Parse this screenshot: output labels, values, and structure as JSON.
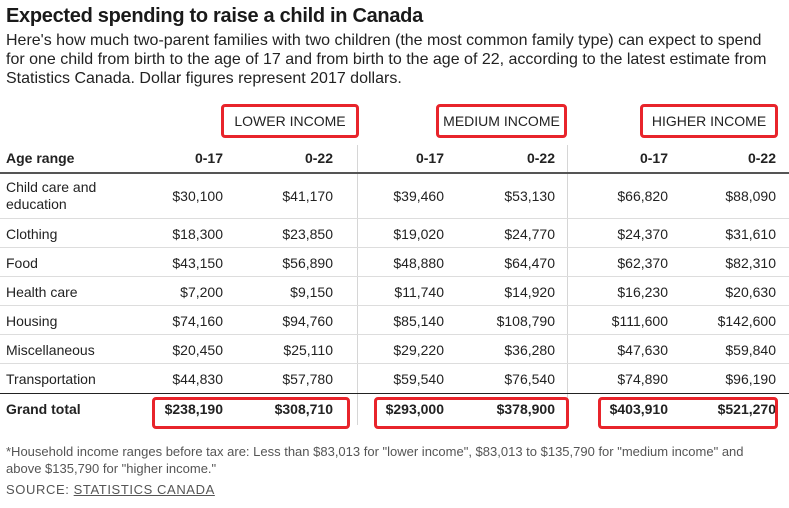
{
  "title": "Expected spending to raise a child in Canada",
  "subtitle": "Here's how much two-parent families with two children (the most common family type) can expect to spend for one child from birth to the age of 17 and from birth to the age of 22, according to the latest estimate from Statistics Canada. Dollar figures represent 2017 dollars.",
  "income_groups": [
    "LOWER INCOME",
    "MEDIUM INCOME",
    "HIGHER INCOME"
  ],
  "table": {
    "columns": [
      "Age range",
      "0-17",
      "0-22",
      "0-17",
      "0-22",
      "0-17",
      "0-22"
    ],
    "rows": [
      {
        "label": "Child care and education",
        "values": [
          "$30,100",
          "$41,170",
          "$39,460",
          "$53,130",
          "$66,820",
          "$88,090"
        ]
      },
      {
        "label": "Clothing",
        "values": [
          "$18,300",
          "$23,850",
          "$19,020",
          "$24,770",
          "$24,370",
          "$31,610"
        ]
      },
      {
        "label": "Food",
        "values": [
          "$43,150",
          "$56,890",
          "$48,880",
          "$64,470",
          "$62,370",
          "$82,310"
        ]
      },
      {
        "label": "Health care",
        "values": [
          "$7,200",
          "$9,150",
          "$11,740",
          "$14,920",
          "$16,230",
          "$20,630"
        ]
      },
      {
        "label": "Housing",
        "values": [
          "$74,160",
          "$94,760",
          "$85,140",
          "$108,790",
          "$111,600",
          "$142,600"
        ]
      },
      {
        "label": "Miscellaneous",
        "values": [
          "$20,450",
          "$25,110",
          "$29,220",
          "$36,280",
          "$47,630",
          "$59,840"
        ]
      },
      {
        "label": "Transportation",
        "values": [
          "$44,830",
          "$57,780",
          "$59,540",
          "$76,540",
          "$74,890",
          "$96,190"
        ]
      }
    ],
    "total": {
      "label": "Grand total",
      "values": [
        "$238,190",
        "$308,710",
        "$293,000",
        "$378,900",
        "$403,910",
        "$521,270"
      ]
    }
  },
  "footnote": "*Household income ranges before tax are: Less than $83,013 for \"lower income\", $83,013 to $135,790 for \"medium income\" and above $135,790 for \"higher income.\"",
  "source": {
    "prefix": "SOURCE: ",
    "link_text": "STATISTICS CANADA"
  },
  "colors": {
    "highlight": "#e8242b",
    "text": "#222222",
    "muted": "#555555"
  }
}
